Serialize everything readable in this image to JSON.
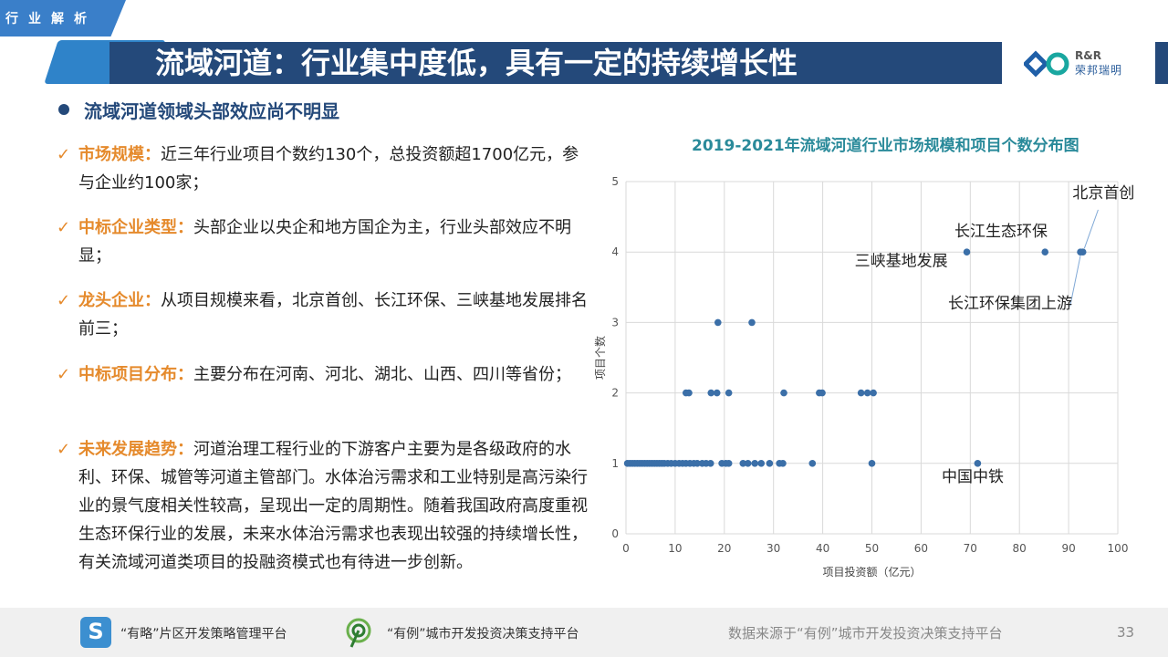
{
  "header": {
    "tag": "行业解析",
    "title": "流域河道：行业集中度低，具有一定的持续增长性",
    "logo_abbr": "R&R",
    "logo_name": "荣邦瑞明"
  },
  "content": {
    "bullet": "流域河道领域头部效应尚不明显",
    "items": [
      {
        "label": "市场规模：",
        "text": "近三年行业项目个数约130个，总投资额超1700亿元，参与企业约100家；"
      },
      {
        "label": "中标企业类型：",
        "text": "头部企业以央企和地方国企为主，行业头部效应不明显；"
      },
      {
        "label": "龙头企业：",
        "text": "从项目规模来看，北京首创、长江环保、三峡基地发展排名前三；"
      },
      {
        "label": "中标项目分布：",
        "text": "主要分布在河南、河北、湖北、山西、四川等省份；"
      },
      {
        "label": "未来发展趋势：",
        "text": "河道治理工程行业的下游客户主要为是各级政府的水利、环保、城管等河道主管部门。水体治污需求和工业特别是高污染行业的景气度相关性较高，呈现出一定的周期性。随着我国政府高度重视生态环保行业的发展，未来水体治污需求也表现出较强的持续增长性，有关流域河道类项目的投融资模式也有待进一步创新。"
      }
    ]
  },
  "chart_data": {
    "type": "scatter",
    "title": "2019-2021年流域河道行业市场规模和项目个数分布图",
    "xlabel": "项目投资额（亿元）",
    "ylabel": "项目个数",
    "xlim": [
      0,
      100
    ],
    "ylim": [
      0,
      5
    ],
    "xticks": [
      0,
      10,
      20,
      30,
      40,
      50,
      60,
      70,
      80,
      90,
      100
    ],
    "yticks": [
      0,
      1,
      2,
      3,
      4,
      5
    ],
    "grid": true,
    "color": "#3b6fa8",
    "points": [
      [
        0.3,
        1
      ],
      [
        0.8,
        1
      ],
      [
        1.3,
        1
      ],
      [
        1.8,
        1
      ],
      [
        2.3,
        1
      ],
      [
        2.8,
        1
      ],
      [
        3.3,
        1
      ],
      [
        3.8,
        1
      ],
      [
        4.3,
        1
      ],
      [
        4.8,
        1
      ],
      [
        5.3,
        1
      ],
      [
        5.8,
        1
      ],
      [
        6.3,
        1
      ],
      [
        6.8,
        1
      ],
      [
        7.3,
        1
      ],
      [
        7.8,
        1
      ],
      [
        8.5,
        1
      ],
      [
        9.2,
        1
      ],
      [
        10,
        1
      ],
      [
        10.8,
        1
      ],
      [
        11.5,
        1
      ],
      [
        12.2,
        1
      ],
      [
        13,
        1
      ],
      [
        13.8,
        1
      ],
      [
        14.5,
        1
      ],
      [
        15.5,
        1
      ],
      [
        16.3,
        1
      ],
      [
        17.2,
        1
      ],
      [
        19.5,
        1
      ],
      [
        20.3,
        1
      ],
      [
        20.9,
        1
      ],
      [
        23.8,
        1
      ],
      [
        24.8,
        1
      ],
      [
        26.2,
        1
      ],
      [
        27.5,
        1
      ],
      [
        29.2,
        1
      ],
      [
        31.2,
        1
      ],
      [
        31.9,
        1
      ],
      [
        37.9,
        1
      ],
      [
        50,
        1
      ],
      [
        71.5,
        1
      ],
      [
        12.2,
        2
      ],
      [
        12.8,
        2
      ],
      [
        17.3,
        2
      ],
      [
        18.5,
        2
      ],
      [
        20.9,
        2
      ],
      [
        32.1,
        2
      ],
      [
        39.3,
        2
      ],
      [
        39.9,
        2
      ],
      [
        47.8,
        2
      ],
      [
        49.1,
        2
      ],
      [
        50.3,
        2
      ],
      [
        18.7,
        3
      ],
      [
        25.6,
        3
      ],
      [
        69.3,
        4
      ],
      [
        85.2,
        4
      ],
      [
        92.4,
        4
      ],
      [
        92.9,
        4
      ]
    ],
    "annotations": [
      {
        "text": "北京首创",
        "x": 92.9,
        "y": 4
      },
      {
        "text": "长江生态环保",
        "x": 69.3,
        "y": 4
      },
      {
        "text": "三峡基地发展",
        "x": 69.3,
        "y": 4
      },
      {
        "text": "长江环保集团上游",
        "x": 92.4,
        "y": 4
      },
      {
        "text": "中国中铁",
        "x": 71.5,
        "y": 1
      }
    ]
  },
  "footer": {
    "platform1": "“有略”片区开发策略管理平台",
    "platform2": "“有例”城市开发投资决策支持平台",
    "source": "数据来源于“有例”城市开发投资决策支持平台",
    "page": "33",
    "logo1_glyph": "S"
  }
}
